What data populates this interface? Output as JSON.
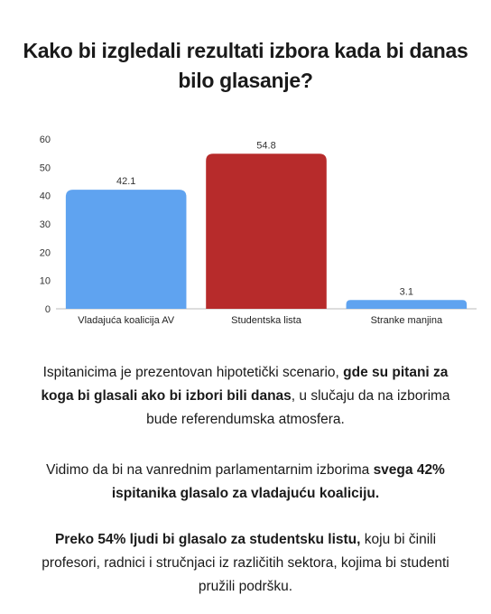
{
  "title_line1": "Kako bi izgledali rezultati izbora kada bi danas",
  "title_line2": "bilo glasanje?",
  "chart_data": {
    "type": "bar",
    "title": "",
    "xlabel": "",
    "ylabel": "",
    "categories": [
      "Vladajuća koalicija AV",
      "Studentska lista",
      "Stranke manjina"
    ],
    "values": [
      42.1,
      54.8,
      3.1
    ],
    "data_labels": [
      "42.1",
      "54.8",
      "3.1"
    ],
    "colors": [
      "#5fa3f0",
      "#b72b2b",
      "#5fa3f0"
    ],
    "ylim": [
      0,
      60
    ],
    "yticks": [
      0,
      10,
      20,
      30,
      40,
      50,
      60
    ],
    "grid": false,
    "legend": "none"
  },
  "paragraphs": {
    "p1_a": "Ispitanicima je prezentovan hipotetički scenario, ",
    "p1_b": "gde su pitani za koga bi glasali ako bi izbori bili danas",
    "p1_c": ", u slučaju da na izborima bude referendumska atmosfera.",
    "p2_a": "Vidimo da bi na vanrednim parlamentarnim izborima ",
    "p2_b": "svega 42% ispitanika glasalo za vladajuću koaliciju.",
    "p3_a": "Preko 54% ljudi bi glasalo za studentsku listu,",
    "p3_b": " koju bi činili profesori, radnici i stručnjaci iz različitih sektora, kojima bi studenti pružili podršku."
  }
}
